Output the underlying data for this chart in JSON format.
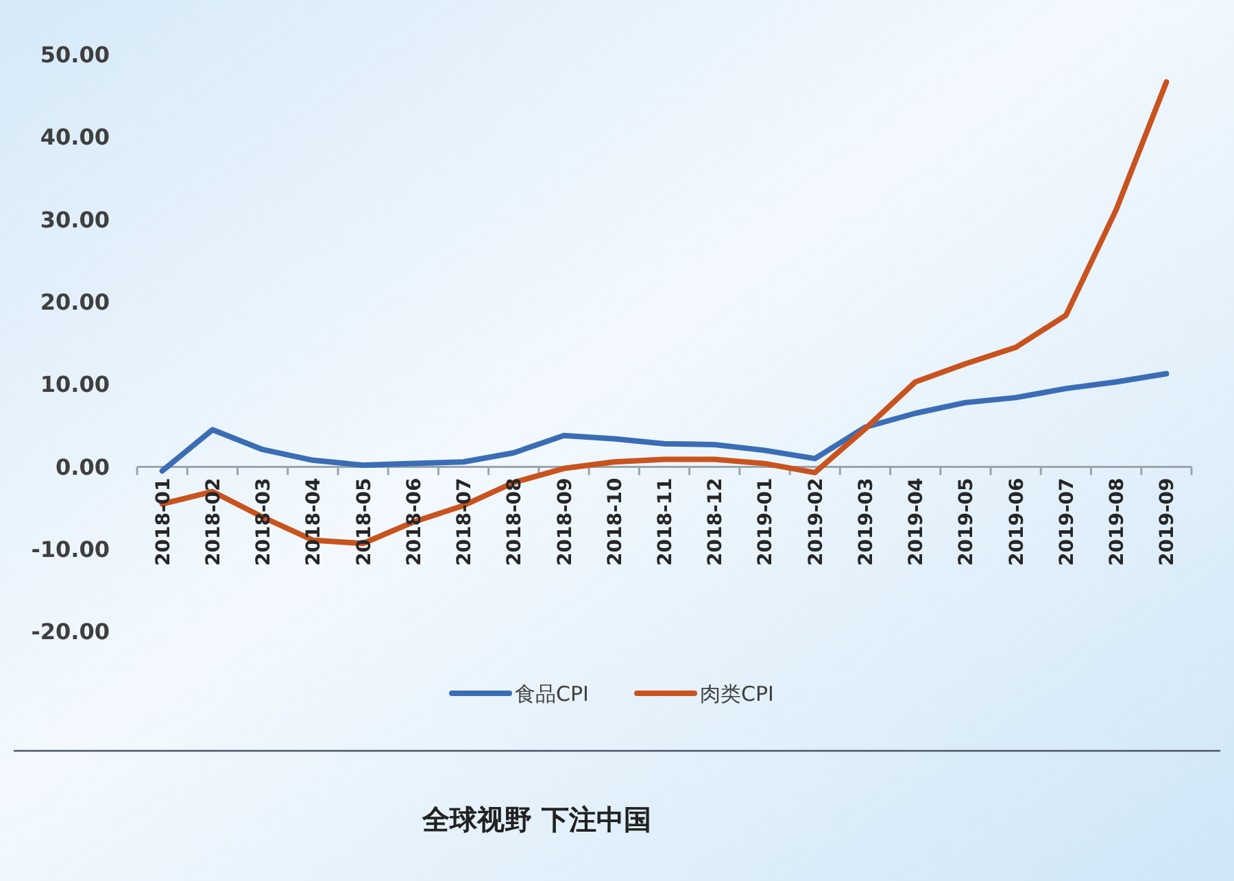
{
  "chart_data": {
    "type": "line",
    "categories": [
      "2018-01",
      "2018-02",
      "2018-03",
      "2018-04",
      "2018-05",
      "2018-06",
      "2018-07",
      "2018-08",
      "2018-09",
      "2018-10",
      "2018-11",
      "2018-12",
      "2019-01",
      "2019-02",
      "2019-03",
      "2019-04",
      "2019-05",
      "2019-06",
      "2019-07",
      "2019-08",
      "2019-09"
    ],
    "series": [
      {
        "name": "食品CPI",
        "color": "#3a6db5",
        "values": [
          -0.5,
          4.5,
          2.1,
          0.8,
          0.2,
          0.4,
          0.6,
          1.7,
          3.8,
          3.4,
          2.8,
          2.7,
          2.0,
          1.0,
          4.8,
          6.5,
          7.8,
          8.4,
          9.5,
          10.3,
          11.3
        ]
      },
      {
        "name": "肉类CPI",
        "color": "#c9531f",
        "values": [
          -4.5,
          -3.0,
          -6.1,
          -8.9,
          -9.3,
          -6.7,
          -4.7,
          -1.9,
          -0.2,
          0.6,
          0.9,
          0.9,
          0.4,
          -0.7,
          4.6,
          10.3,
          12.5,
          14.5,
          18.4,
          31.2,
          46.7
        ]
      }
    ],
    "ylim": [
      -20,
      50
    ],
    "yticks": [
      {
        "value": -20,
        "label": "-20.00"
      },
      {
        "value": -10,
        "label": "-10.00"
      },
      {
        "value": 0,
        "label": "0.00"
      },
      {
        "value": 10,
        "label": "10.00"
      },
      {
        "value": 20,
        "label": "20.00"
      },
      {
        "value": 30,
        "label": "30.00"
      },
      {
        "value": 40,
        "label": "40.00"
      },
      {
        "value": 50,
        "label": "50.00"
      }
    ],
    "legend": "bottom",
    "annotations": [
      "全球视野 下注中国"
    ]
  }
}
